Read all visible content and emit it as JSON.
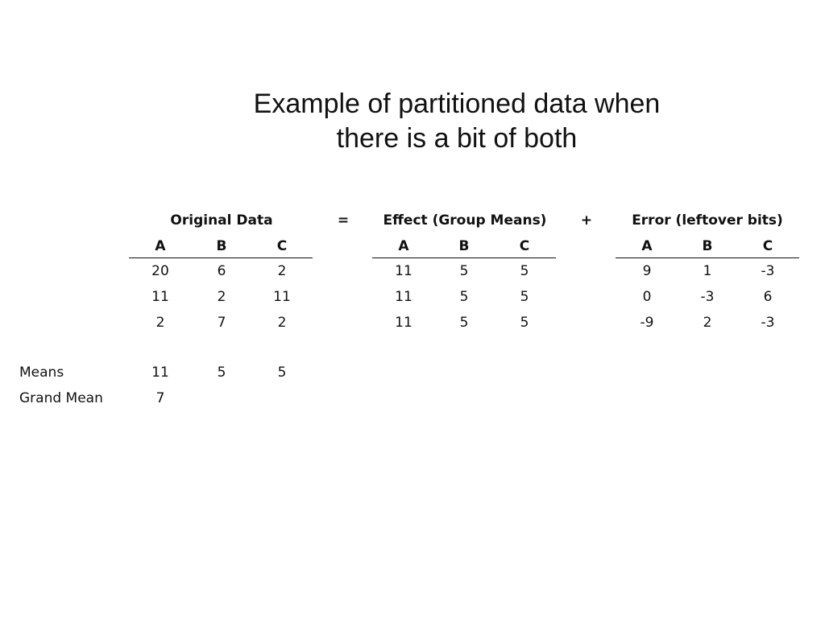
{
  "title": {
    "line1": "Example of partitioned data when",
    "line2": "there is a bit of both"
  },
  "operators": {
    "equals": "=",
    "plus": "+"
  },
  "original": {
    "header": "Original Data",
    "columns": [
      "A",
      "B",
      "C"
    ],
    "rows": [
      [
        "20",
        "6",
        "2"
      ],
      [
        "11",
        "2",
        "11"
      ],
      [
        "2",
        "7",
        "2"
      ]
    ],
    "means_label": "Means",
    "means": [
      "11",
      "5",
      "5"
    ],
    "grand_mean_label": "Grand Mean",
    "grand_mean": "7"
  },
  "effect": {
    "header": "Effect (Group Means)",
    "columns": [
      "A",
      "B",
      "C"
    ],
    "rows": [
      [
        "11",
        "5",
        "5"
      ],
      [
        "11",
        "5",
        "5"
      ],
      [
        "11",
        "5",
        "5"
      ]
    ]
  },
  "error": {
    "header": "Error (leftover bits)",
    "columns": [
      "A",
      "B",
      "C"
    ],
    "rows": [
      [
        "9",
        "1",
        "-3"
      ],
      [
        "0",
        "-3",
        "6"
      ],
      [
        "-9",
        "2",
        "-3"
      ]
    ]
  }
}
